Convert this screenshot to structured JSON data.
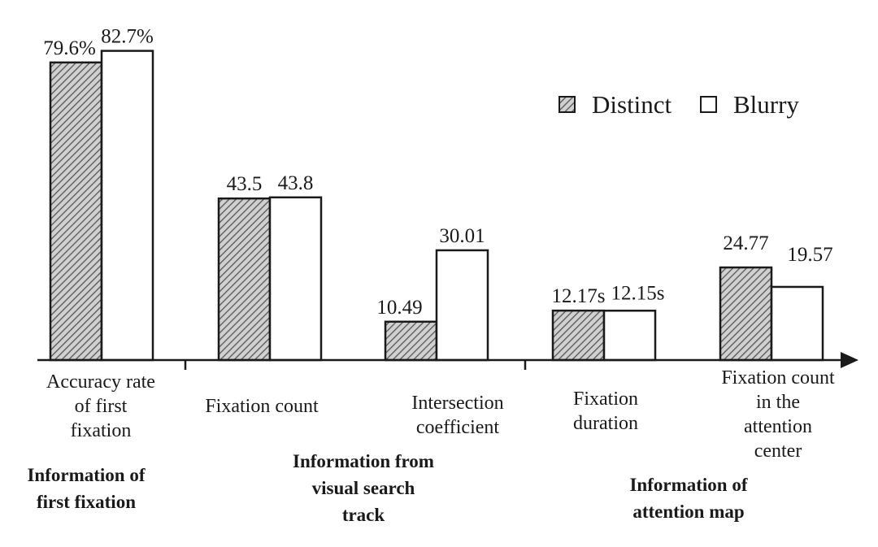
{
  "chart_data": {
    "type": "bar",
    "categories": [
      [
        "Accuracy rate",
        "of first",
        "fixation"
      ],
      [
        "Fixation count"
      ],
      [
        "Intersection",
        "coefficient"
      ],
      [
        "Fixation",
        "duration"
      ],
      [
        "Fixation count",
        "in the",
        "attention",
        "center"
      ]
    ],
    "groups": [
      {
        "lines": [
          "Information of",
          "first fixation"
        ],
        "categories": [
          0
        ]
      },
      {
        "lines": [
          "Information from",
          "visual search",
          "track"
        ],
        "categories": [
          1,
          2
        ]
      },
      {
        "lines": [
          "Information of",
          "attention map"
        ],
        "categories": [
          3,
          4
        ]
      }
    ],
    "series": [
      {
        "name": "Distinct",
        "pattern": "hatched",
        "values": [
          79.6,
          43.5,
          10.49,
          12.17,
          24.77
        ],
        "labels": [
          "79.6%",
          "43.5",
          "10.49",
          "12.17s",
          "24.77"
        ]
      },
      {
        "name": "Blurry",
        "pattern": "plain",
        "values": [
          82.7,
          43.8,
          30.01,
          12.15,
          19.57
        ],
        "labels": [
          "82.7%",
          "43.8",
          "30.01",
          "12.15s",
          "19.57"
        ]
      }
    ],
    "note": "Each category is drawn on its own scale (mixed units: %, counts, coefficient, seconds).",
    "legend": "top-right",
    "grid": false,
    "colors": {
      "bar_stroke": "#1a1a1a",
      "hatch": "#555555",
      "hatch_bg": "#d0d0d0",
      "plain_fill": "#ffffff"
    }
  }
}
